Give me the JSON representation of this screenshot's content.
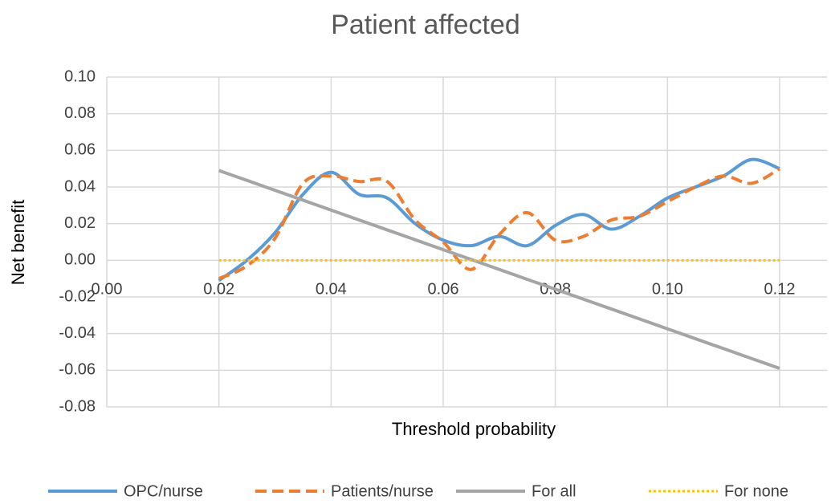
{
  "chart_data": {
    "type": "line",
    "title": "Patient affected",
    "x_label": "Threshold probability",
    "y_label": "Net benefit",
    "x": [
      0.02,
      0.025,
      0.03,
      0.035,
      0.04,
      0.045,
      0.05,
      0.055,
      0.06,
      0.065,
      0.07,
      0.075,
      0.08,
      0.085,
      0.09,
      0.095,
      0.1,
      0.105,
      0.11,
      0.115,
      0.12
    ],
    "series": [
      {
        "name": "OPC/nurse",
        "color": "#5b9bd5",
        "style": "solid",
        "smooth": true,
        "values": [
          -0.011,
          0.0,
          0.015,
          0.036,
          0.048,
          0.036,
          0.034,
          0.02,
          0.011,
          0.008,
          0.013,
          0.008,
          0.019,
          0.025,
          0.017,
          0.024,
          0.034,
          0.04,
          0.046,
          0.055,
          0.05
        ]
      },
      {
        "name": "Patients/nurse",
        "color": "#ed7d31",
        "style": "dashed",
        "smooth": true,
        "values": [
          -0.01,
          -0.003,
          0.012,
          0.042,
          0.046,
          0.043,
          0.043,
          0.022,
          0.01,
          -0.005,
          0.014,
          0.026,
          0.011,
          0.013,
          0.022,
          0.024,
          0.032,
          0.04,
          0.046,
          0.042,
          0.05
        ]
      },
      {
        "name": "For all",
        "color": "#a5a5a5",
        "style": "solid",
        "smooth": false,
        "values": [
          0.049,
          0.0436,
          0.0382,
          0.0328,
          0.0274,
          0.022,
          0.0166,
          0.0112,
          0.0058,
          0.0004,
          -0.005,
          -0.0104,
          -0.0158,
          -0.0212,
          -0.0266,
          -0.032,
          -0.0374,
          -0.0428,
          -0.0482,
          -0.0536,
          -0.059
        ]
      },
      {
        "name": "For none",
        "color": "#ffc000",
        "style": "dotted",
        "smooth": false,
        "values": [
          0,
          0,
          0,
          0,
          0,
          0,
          0,
          0,
          0,
          0,
          0,
          0,
          0,
          0,
          0,
          0,
          0,
          0,
          0,
          0,
          0
        ]
      }
    ],
    "xlim": [
      0,
      0.12
    ],
    "xticks": [
      {
        "value": 0,
        "label": "0.00"
      },
      {
        "value": 0.02,
        "label": "0.02"
      },
      {
        "value": 0.04,
        "label": "0.04"
      },
      {
        "value": 0.06,
        "label": "0.06"
      },
      {
        "value": 0.08,
        "label": "0.08"
      },
      {
        "value": 0.1,
        "label": "0.10"
      },
      {
        "value": 0.12,
        "label": "0.12"
      }
    ],
    "ylim": [
      -0.08,
      0.1
    ],
    "yticks": [
      {
        "value": -0.08,
        "label": "-0.08"
      },
      {
        "value": -0.06,
        "label": "-0.06"
      },
      {
        "value": -0.04,
        "label": "-0.04"
      },
      {
        "value": -0.02,
        "label": "-0.02"
      },
      {
        "value": 0,
        "label": "0.00"
      },
      {
        "value": 0.02,
        "label": "0.02"
      },
      {
        "value": 0.04,
        "label": "0.04"
      },
      {
        "value": 0.06,
        "label": "0.06"
      },
      {
        "value": 0.08,
        "label": "0.08"
      },
      {
        "value": 0.1,
        "label": "0.10"
      }
    ],
    "grid": true,
    "legend": "bottom"
  }
}
